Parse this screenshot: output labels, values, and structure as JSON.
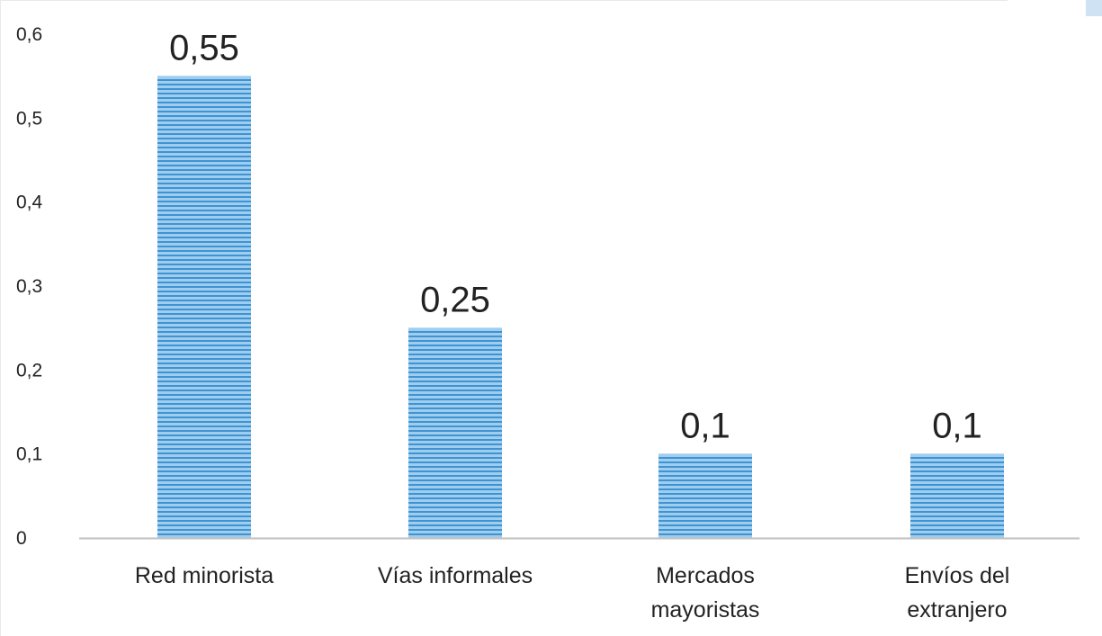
{
  "chart_data": {
    "type": "bar",
    "title": "",
    "xlabel": "",
    "ylabel": "",
    "categories": [
      [
        "Red minorista"
      ],
      [
        "Vías informales"
      ],
      [
        "Mercados",
        "mayoristas"
      ],
      [
        "Envíos del",
        "extranjero"
      ]
    ],
    "values": [
      0.55,
      0.25,
      0.1,
      0.1
    ],
    "data_labels": [
      "0,55",
      "0,25",
      "0,1",
      "0,1"
    ],
    "ylim": [
      0,
      0.6
    ],
    "yticks": [
      0,
      0.1,
      0.2,
      0.3,
      0.4,
      0.5,
      0.6
    ],
    "ytick_labels": [
      "0",
      "0,1",
      "0,2",
      "0,3",
      "0,4",
      "0,5",
      "0,6"
    ],
    "grid": false,
    "legend": "none",
    "colors": {
      "bar_light": "#9fcdee",
      "bar_dark": "#3f93d3",
      "axis": "#bfbfbf",
      "text": "#222222"
    }
  }
}
